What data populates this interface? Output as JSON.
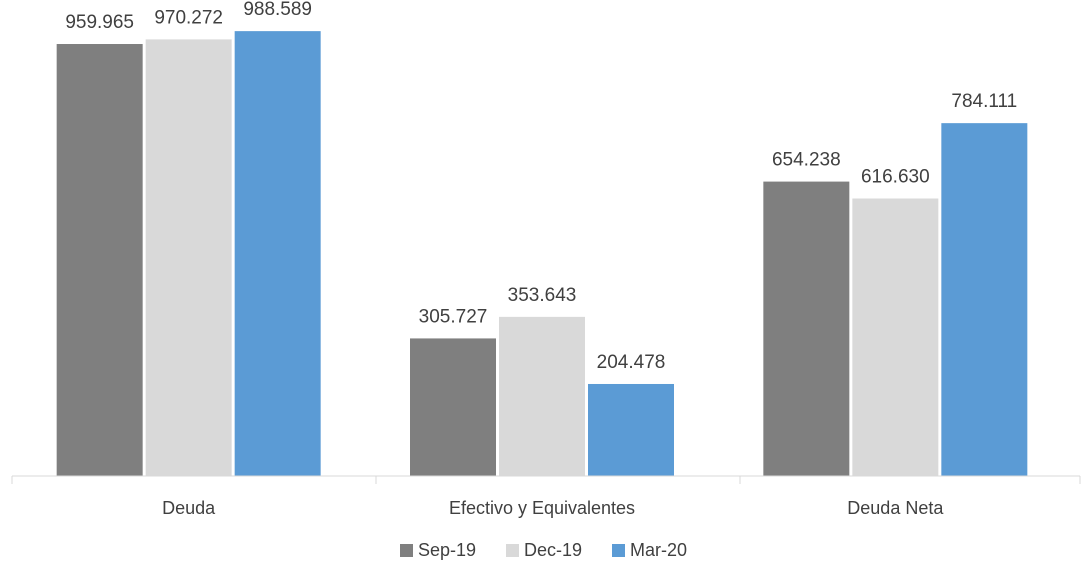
{
  "chart_data": {
    "type": "bar",
    "categories": [
      "Deuda",
      "Efectivo y Equivalentes",
      "Deuda Neta"
    ],
    "series": [
      {
        "name": "Sep-19",
        "color": "#7f7f7f",
        "values": [
          959965,
          305727,
          654238
        ],
        "labels": [
          "959.965",
          "305.727",
          "654.238"
        ]
      },
      {
        "name": "Dec-19",
        "color": "#d9d9d9",
        "values": [
          970272,
          353643,
          616630
        ],
        "labels": [
          "970.272",
          "353.643",
          "616.630"
        ]
      },
      {
        "name": "Mar-20",
        "color": "#5b9bd5",
        "values": [
          988589,
          204478,
          784111
        ],
        "labels": [
          "988.589",
          "204.478",
          "784.111"
        ]
      }
    ],
    "ylim": [
      0,
      1000000
    ],
    "grid": false,
    "legend": "bottom"
  }
}
